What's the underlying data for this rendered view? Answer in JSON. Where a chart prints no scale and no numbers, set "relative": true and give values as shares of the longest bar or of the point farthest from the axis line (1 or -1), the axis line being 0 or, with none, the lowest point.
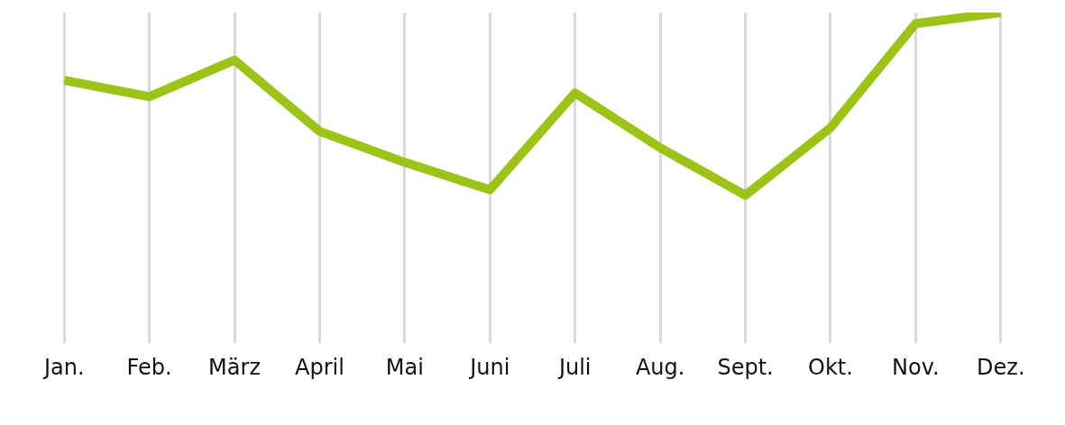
{
  "chart_data": {
    "type": "line",
    "relative": true,
    "grid": "x",
    "legend": false,
    "marker": "none",
    "line_style": "solid",
    "categories": [
      "Jan.",
      "Feb.",
      "März",
      "April",
      "Mai",
      "Juni",
      "Juli",
      "Aug.",
      "Sept.",
      "Okt.",
      "Nov.",
      "Dez."
    ],
    "series": [
      {
        "color": "#9dc31a",
        "values": [
          0.63,
          0.54,
          0.74,
          0.35,
          0.18,
          0.03,
          0.56,
          0.26,
          0,
          0.37,
          0.94,
          1
        ]
      }
    ]
  }
}
